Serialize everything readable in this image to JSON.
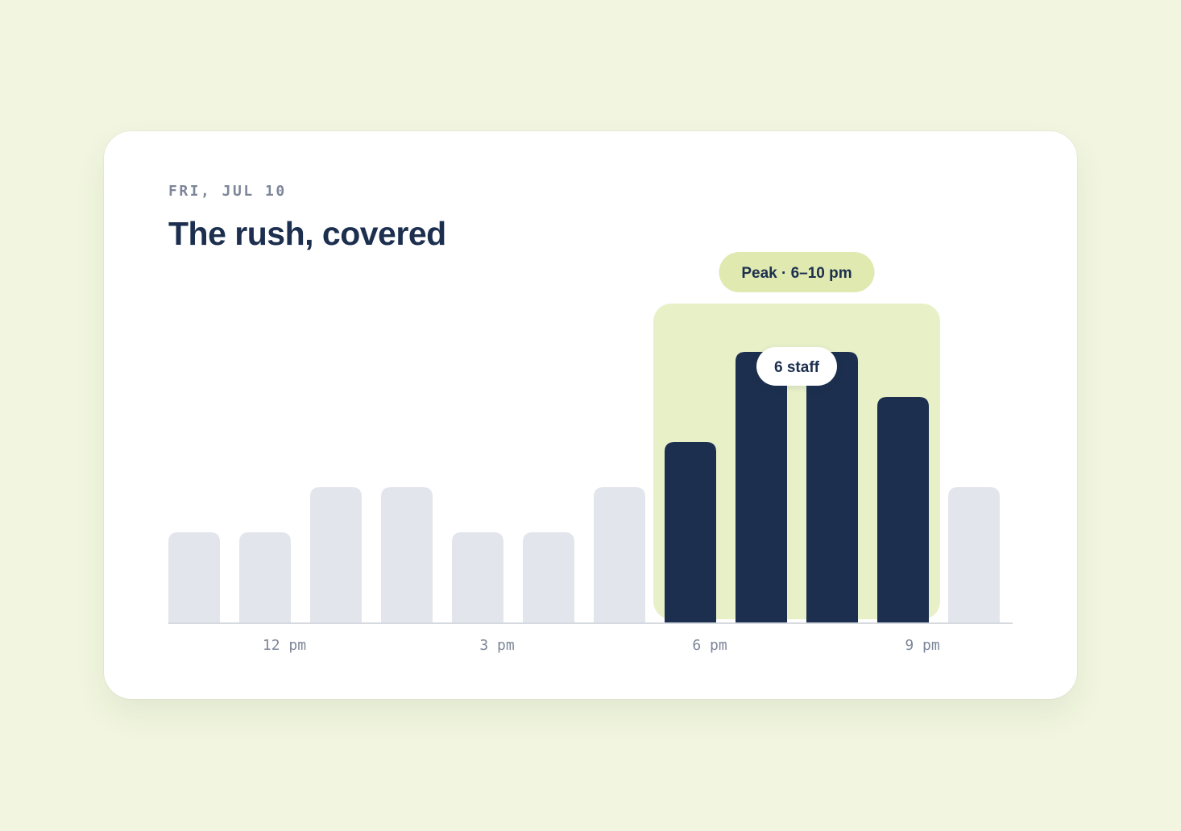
{
  "header": {
    "date": "FRI, JUL 10",
    "title": "The rush, covered"
  },
  "colors": {
    "page_background": "#f2f6e0",
    "card_background": "#ffffff",
    "bar_default": "#e2e6ec",
    "bar_peak": "#1c2f4e",
    "peak_band": "#e8f0c8",
    "peak_pill": "#dfe9b0",
    "axis_text": "#7d8699",
    "title_text": "#1c2f4e"
  },
  "chart_data": {
    "type": "bar",
    "title": "The rush, covered",
    "xlabel": "",
    "ylabel": "",
    "grid": false,
    "categories": [
      "11 am",
      "12 pm",
      "1 pm",
      "2 pm",
      "3 pm",
      "4 pm",
      "5 pm",
      "6 pm",
      "7 pm",
      "8 pm",
      "9 pm",
      "10 pm"
    ],
    "x_tick_labels": [
      {
        "category": "12 pm",
        "label": "12 pm"
      },
      {
        "category": "3 pm",
        "label": "3 pm"
      },
      {
        "category": "6 pm",
        "label": "6 pm"
      },
      {
        "category": "9 pm",
        "label": "9 pm"
      }
    ],
    "values": [
      2,
      2,
      3,
      3,
      2,
      2,
      3,
      4,
      6,
      6,
      5,
      3
    ],
    "ylim": [
      0,
      7
    ],
    "highlight": {
      "label": "Peak · 6–10 pm",
      "start_category": "6 pm",
      "end_category": "9 pm"
    },
    "annotation": {
      "text": "6 staff",
      "category": "7 pm",
      "category_end": "8 pm"
    }
  }
}
